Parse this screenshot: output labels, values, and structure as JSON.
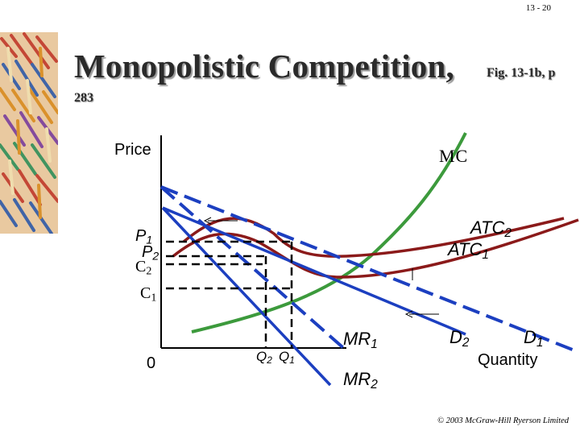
{
  "slide_number": "13 - 20",
  "title": "Monopolistic Competition,",
  "title_ref": "Fig. 13-1b, p",
  "title_ref_page": "283",
  "labels": {
    "price": "Price",
    "quantity": "Quantity",
    "mc": "MC",
    "atc2": {
      "base": "ATC",
      "sub": "2"
    },
    "atc1": {
      "base": "ATC",
      "sub": "1"
    },
    "p1": {
      "base": "P",
      "sub": "1"
    },
    "p2": {
      "base": "P",
      "sub": "2"
    },
    "c2": {
      "base": "C",
      "sub": "2"
    },
    "c1": {
      "base": "C",
      "sub": "1"
    },
    "zero": "0",
    "q2": {
      "base": "Q",
      "sub": "2"
    },
    "q1": {
      "base": "Q",
      "sub": "1"
    },
    "mr1": {
      "base": "MR",
      "sub": "1"
    },
    "mr2": {
      "base": "MR",
      "sub": "2"
    },
    "d2": {
      "base": "D",
      "sub": "2"
    },
    "d1": {
      "base": "D",
      "sub": "1"
    }
  },
  "copyright": "© 2003 McGraw-Hill Ryerson Limited",
  "colors": {
    "mc": "#3c9a3c",
    "demand": "#1c3fc0",
    "atc": "#8b1a1a",
    "axes": "#000000"
  }
}
